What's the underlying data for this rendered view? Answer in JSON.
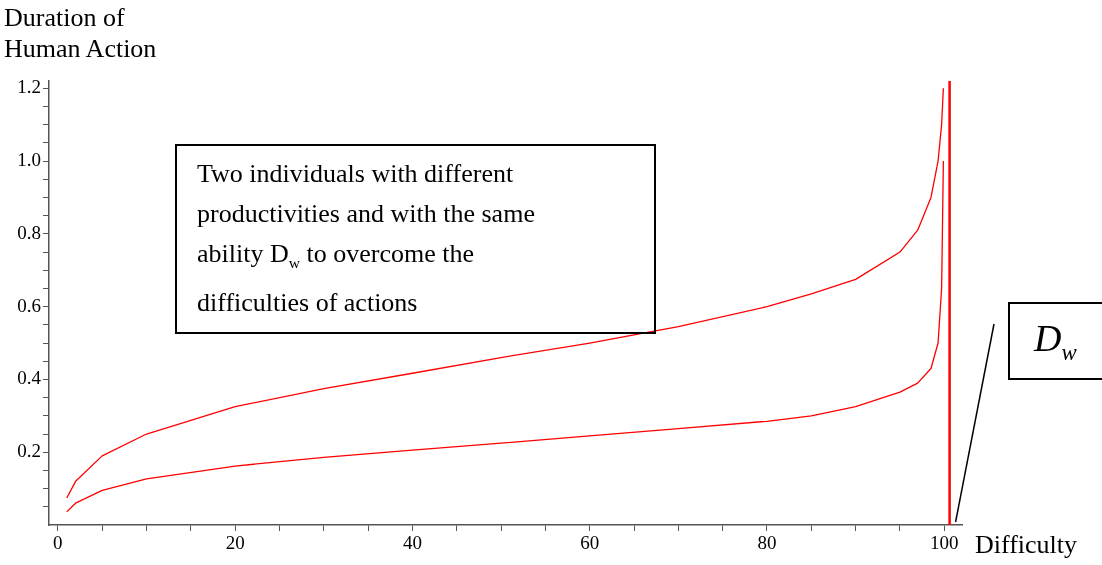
{
  "chart_data": {
    "type": "line",
    "xlabel": "Difficulty",
    "ylabel": "Duration of Human Action",
    "annotations": [
      "Two individuals with different productivities and with the same ability D$_{w}$ to overcome the difficulties of actions"
    ],
    "series": [
      {
        "color": "#ff0000",
        "x": [
          1,
          2,
          5,
          10,
          20,
          30,
          40,
          50,
          60,
          70,
          80,
          85,
          90,
          95,
          97,
          98.5,
          99.3,
          99.7,
          99.9
        ],
        "values": [
          0.074,
          0.12,
          0.19,
          0.25,
          0.325,
          0.375,
          0.417,
          0.46,
          0.5,
          0.545,
          0.6,
          0.635,
          0.675,
          0.75,
          0.81,
          0.9,
          1.0,
          1.1,
          1.2
        ]
      },
      {
        "color": "#ff0000",
        "x": [
          1,
          2,
          5,
          10,
          20,
          30,
          40,
          50,
          60,
          70,
          80,
          85,
          90,
          95,
          97,
          98.5,
          99.3,
          99.7,
          99.9
        ],
        "values": [
          0.036,
          0.06,
          0.095,
          0.127,
          0.162,
          0.186,
          0.206,
          0.225,
          0.245,
          0.265,
          0.285,
          0.3,
          0.325,
          0.365,
          0.39,
          0.43,
          0.5,
          0.65,
          1.0
        ]
      }
    ],
    "ref_lines": [
      {
        "axis": "x",
        "value": 100.6,
        "label": "D$_{w}$",
        "color": "#ff0000"
      }
    ],
    "xlim": [
      -1,
      102
    ],
    "ylim": [
      0,
      1.22
    ],
    "xticks": [
      0,
      {
        "value": 5,
        "label": null
      },
      {
        "value": 10,
        "label": null
      },
      {
        "value": 15,
        "label": null
      },
      20,
      {
        "value": 25,
        "label": null
      },
      {
        "value": 30,
        "label": null
      },
      {
        "value": 35,
        "label": null
      },
      40,
      {
        "value": 45,
        "label": null
      },
      {
        "value": 50,
        "label": null
      },
      {
        "value": 55,
        "label": null
      },
      60,
      {
        "value": 65,
        "label": null
      },
      {
        "value": 70,
        "label": null
      },
      {
        "value": 75,
        "label": null
      },
      80,
      {
        "value": 85,
        "label": null
      },
      {
        "value": 90,
        "label": null
      },
      {
        "value": 95,
        "label": null
      },
      100
    ],
    "yticks": [
      {
        "value": 0.05,
        "label": null
      },
      {
        "value": 0.1,
        "label": null
      },
      {
        "value": 0.15,
        "label": null
      },
      0.2,
      {
        "value": 0.25,
        "label": null
      },
      {
        "value": 0.3,
        "label": null
      },
      {
        "value": 0.35,
        "label": null
      },
      0.4,
      {
        "value": 0.45,
        "label": null
      },
      {
        "value": 0.5,
        "label": null
      },
      {
        "value": 0.55,
        "label": null
      },
      0.6,
      {
        "value": 0.65,
        "label": null
      },
      {
        "value": 0.7,
        "label": null
      },
      {
        "value": 0.75,
        "label": null
      },
      0.8,
      {
        "value": 0.85,
        "label": null
      },
      {
        "value": 0.9,
        "label": null
      },
      {
        "value": 0.95,
        "label": null
      },
      {
        "value": 1,
        "label": "1.0"
      },
      {
        "value": 1.05,
        "label": null
      },
      {
        "value": 1.1,
        "label": null
      },
      {
        "value": 1.15,
        "label": null
      },
      1.2
    ],
    "grid": false,
    "legend": false,
    "marker": "none",
    "line_style": "solid"
  }
}
